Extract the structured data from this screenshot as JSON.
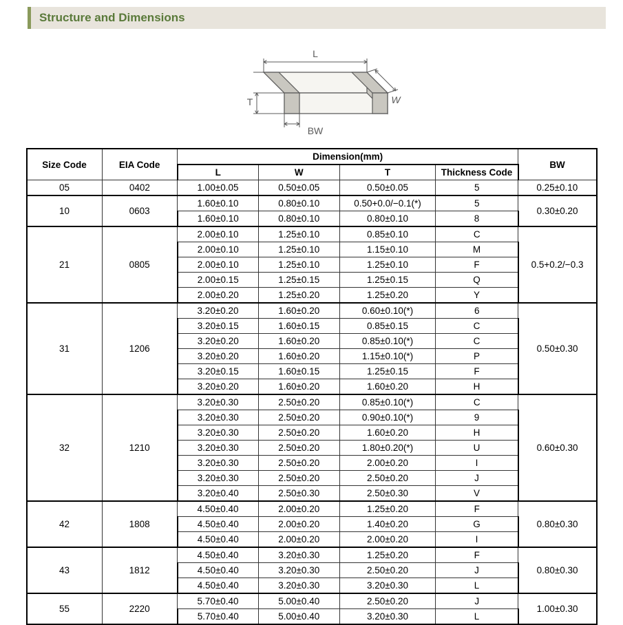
{
  "header": {
    "title": "Structure and Dimensions"
  },
  "diagram": {
    "labels": {
      "L": "L",
      "W": "W",
      "T": "T",
      "BW": "BW"
    },
    "stroke": "#5a5a5a",
    "fill_light": "#f6f5f1",
    "fill_shadow": "#c9c7c0"
  },
  "table": {
    "headers": {
      "size": "Size Code",
      "eia": "EIA Code",
      "dim_super": "Dimension(mm)",
      "L": "L",
      "W": "W",
      "T": "T",
      "tc": "Thickness  Code",
      "BW": "BW"
    },
    "groups": [
      {
        "size": "05",
        "eia": "0402",
        "bw": "0.25±0.10",
        "rows": [
          {
            "L": "1.00±0.05",
            "W": "0.50±0.05",
            "T": "0.50±0.05",
            "tc": "5"
          }
        ]
      },
      {
        "size": "10",
        "eia": "0603",
        "bw": "0.30±0.20",
        "rows": [
          {
            "L": "1.60±0.10",
            "W": "0.80±0.10",
            "T": "0.50+0.0/−0.1(*)",
            "tc": "5"
          },
          {
            "L": "1.60±0.10",
            "W": "0.80±0.10",
            "T": "0.80±0.10",
            "tc": "8"
          }
        ]
      },
      {
        "size": "21",
        "eia": "0805",
        "bw": "0.5+0.2/−0.3",
        "rows": [
          {
            "L": "2.00±0.10",
            "W": "1.25±0.10",
            "T": "0.85±0.10",
            "tc": "C"
          },
          {
            "L": "2.00±0.10",
            "W": "1.25±0.10",
            "T": "1.15±0.10",
            "tc": "M"
          },
          {
            "L": "2.00±0.10",
            "W": "1.25±0.10",
            "T": "1.25±0.10",
            "tc": "F"
          },
          {
            "L": "2.00±0.15",
            "W": "1.25±0.15",
            "T": "1.25±0.15",
            "tc": "Q"
          },
          {
            "L": "2.00±0.20",
            "W": "1.25±0.20",
            "T": "1.25±0.20",
            "tc": "Y"
          }
        ]
      },
      {
        "size": "31",
        "eia": "1206",
        "bw": "0.50±0.30",
        "rows": [
          {
            "L": "3.20±0.20",
            "W": "1.60±0.20",
            "T": "0.60±0.10(*)",
            "tc": "6"
          },
          {
            "L": "3.20±0.15",
            "W": "1.60±0.15",
            "T": "0.85±0.15",
            "tc": "C"
          },
          {
            "L": "3.20±0.20",
            "W": "1.60±0.20",
            "T": "0.85±0.10(*)",
            "tc": "C"
          },
          {
            "L": "3.20±0.20",
            "W": "1.60±0.20",
            "T": "1.15±0.10(*)",
            "tc": "P"
          },
          {
            "L": "3.20±0.15",
            "W": "1.60±0.15",
            "T": "1.25±0.15",
            "tc": "F"
          },
          {
            "L": "3.20±0.20",
            "W": "1.60±0.20",
            "T": "1.60±0.20",
            "tc": "H"
          }
        ]
      },
      {
        "size": "32",
        "eia": "1210",
        "bw": "0.60±0.30",
        "rows": [
          {
            "L": "3.20±0.30",
            "W": "2.50±0.20",
            "T": "0.85±0.10(*)",
            "tc": "C"
          },
          {
            "L": "3.20±0.30",
            "W": "2.50±0.20",
            "T": "0.90±0.10(*)",
            "tc": "9"
          },
          {
            "L": "3.20±0.30",
            "W": "2.50±0.20",
            "T": "1.60±0.20",
            "tc": "H"
          },
          {
            "L": "3.20±0.30",
            "W": "2.50±0.20",
            "T": "1.80±0.20(*)",
            "tc": "U"
          },
          {
            "L": "3.20±0.30",
            "W": "2.50±0.20",
            "T": "2.00±0.20",
            "tc": "I"
          },
          {
            "L": "3.20±0.30",
            "W": "2.50±0.20",
            "T": "2.50±0.20",
            "tc": "J"
          },
          {
            "L": "3.20±0.40",
            "W": "2.50±0.30",
            "T": "2.50±0.30",
            "tc": "V"
          }
        ]
      },
      {
        "size": "42",
        "eia": "1808",
        "bw": "0.80±0.30",
        "rows": [
          {
            "L": "4.50±0.40",
            "W": "2.00±0.20",
            "T": "1.25±0.20",
            "tc": "F"
          },
          {
            "L": "4.50±0.40",
            "W": "2.00±0.20",
            "T": "1.40±0.20",
            "tc": "G"
          },
          {
            "L": "4.50±0.40",
            "W": "2.00±0.20",
            "T": "2.00±0.20",
            "tc": "I"
          }
        ]
      },
      {
        "size": "43",
        "eia": "1812",
        "bw": "0.80±0.30",
        "rows": [
          {
            "L": "4.50±0.40",
            "W": "3.20±0.30",
            "T": "1.25±0.20",
            "tc": "F"
          },
          {
            "L": "4.50±0.40",
            "W": "3.20±0.30",
            "T": "2.50±0.20",
            "tc": "J"
          },
          {
            "L": "4.50±0.40",
            "W": "3.20±0.30",
            "T": "3.20±0.30",
            "tc": "L"
          }
        ]
      },
      {
        "size": "55",
        "eia": "2220",
        "bw": "1.00±0.30",
        "rows": [
          {
            "L": "5.70±0.40",
            "W": "5.00±0.40",
            "T": "2.50±0.20",
            "tc": "J"
          },
          {
            "L": "5.70±0.40",
            "W": "5.00±0.40",
            "T": "3.20±0.30",
            "tc": "L"
          }
        ]
      }
    ]
  }
}
